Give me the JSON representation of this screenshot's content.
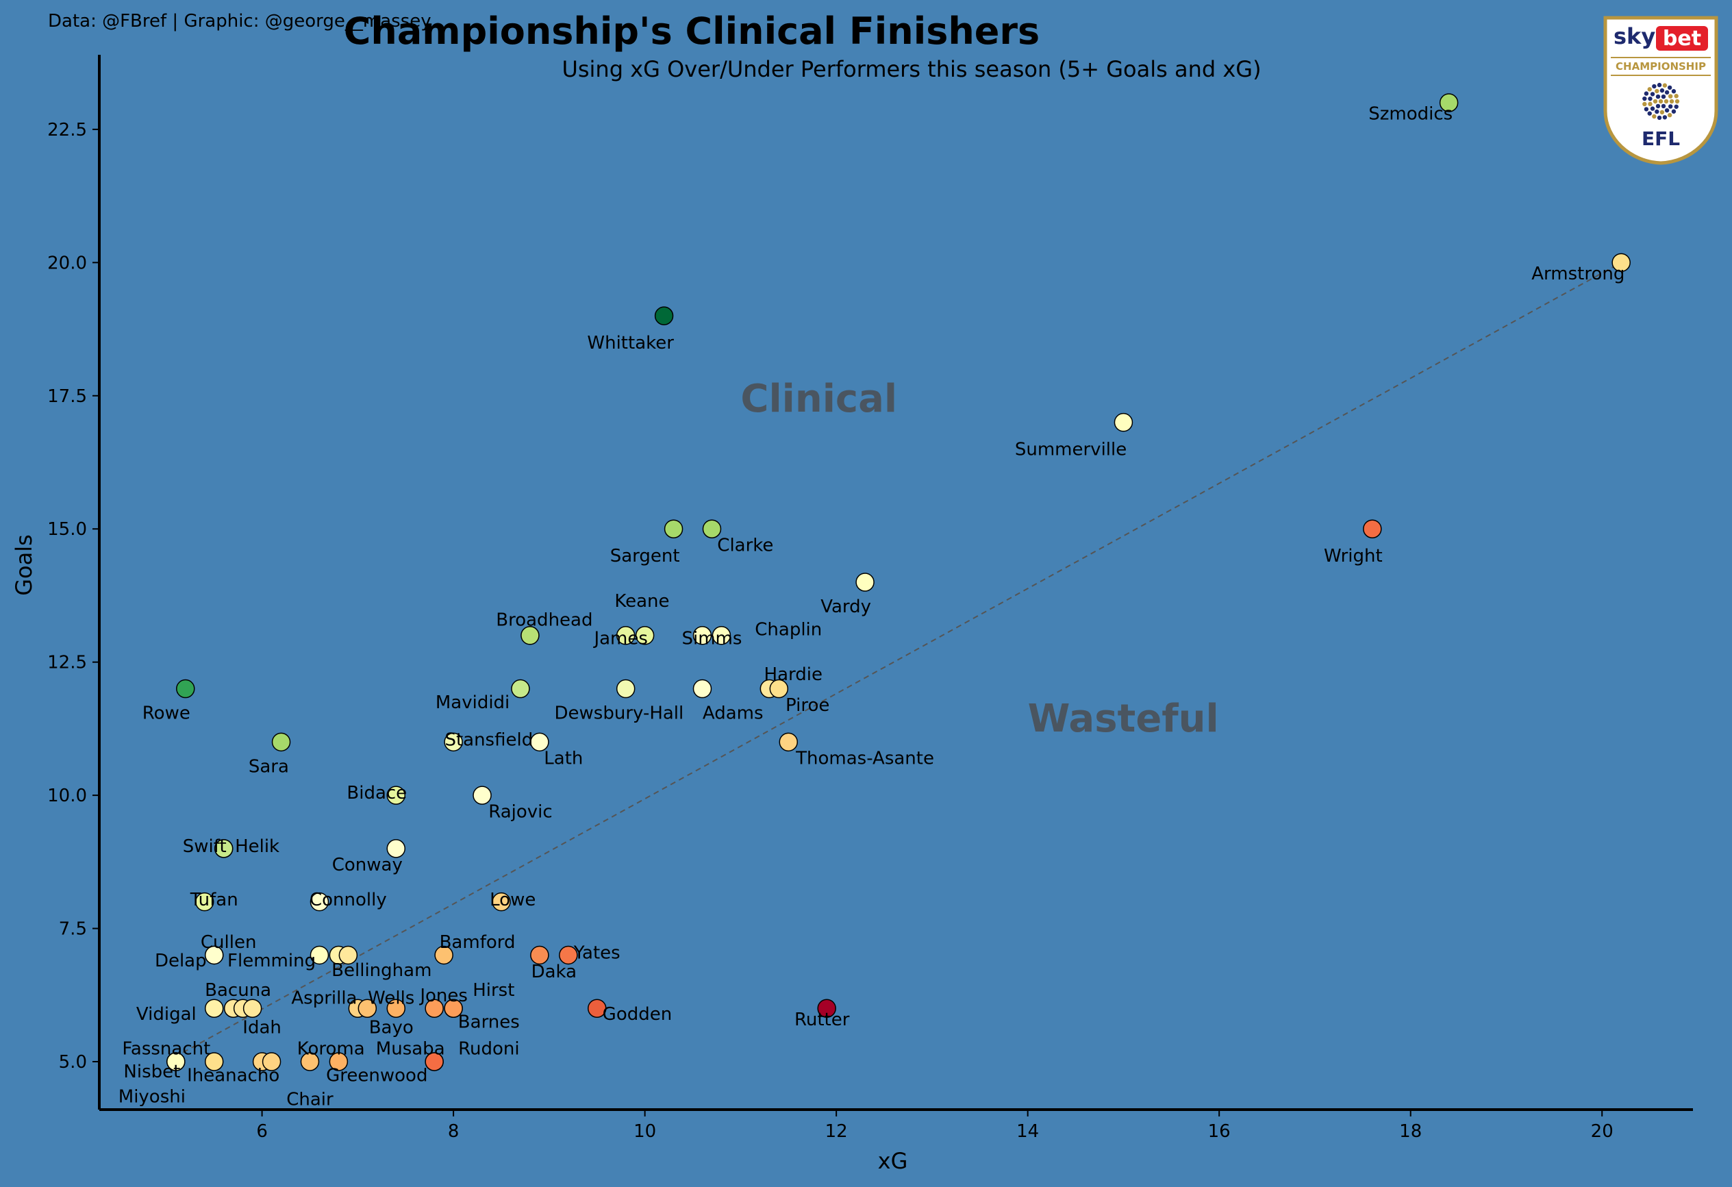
{
  "header": {
    "credit": "Data: @FBref | Graphic: @george__massey",
    "title": "Championship's Clinical Finishers",
    "subtitle": "Using xG Over/Under Performers this season (5+ Goals and xG)"
  },
  "logo": {
    "brand_sky": "sky",
    "brand_bet": "bet",
    "competition": "CHAMPIONSHIP",
    "league": "EFL",
    "colors": {
      "navy": "#1e2a6e",
      "red": "#e4202a",
      "gold": "#b8963f"
    }
  },
  "chart_data": {
    "type": "scatter",
    "xlabel": "xG",
    "ylabel": "Goals",
    "xlim": [
      4.3,
      20.95
    ],
    "ylim": [
      4.1,
      23.9
    ],
    "xticks": [
      6,
      8,
      10,
      12,
      14,
      16,
      18,
      20
    ],
    "yticks": [
      5.0,
      7.5,
      10.0,
      12.5,
      15.0,
      17.5,
      20.0,
      22.5
    ],
    "grid": false,
    "reference_line": {
      "from": [
        5,
        5
      ],
      "to": [
        20.2,
        20
      ]
    },
    "annotations": [
      {
        "text": "Clinical",
        "x": 11.0,
        "y": 17.2
      },
      {
        "text": "Wasteful",
        "x": 14.0,
        "y": 11.2
      }
    ],
    "points": [
      {
        "name": "Szmodics",
        "x": 18.4,
        "y": 23,
        "color": "#a6d96a"
      },
      {
        "name": "Armstrong",
        "x": 20.2,
        "y": 20,
        "color": "#fee08b"
      },
      {
        "name": "Whittaker",
        "x": 10.2,
        "y": 19,
        "color": "#006837"
      },
      {
        "name": "Summerville",
        "x": 15.0,
        "y": 17,
        "color": "#ffffbf"
      },
      {
        "name": "Sargent",
        "x": 10.3,
        "y": 15,
        "color": "#a6d96a"
      },
      {
        "name": "Clarke",
        "x": 10.7,
        "y": 15,
        "color": "#a6d96a"
      },
      {
        "name": "Wright",
        "x": 17.6,
        "y": 15,
        "color": "#f46d43"
      },
      {
        "name": "Vardy",
        "x": 12.3,
        "y": 14,
        "color": "#ffffbf"
      },
      {
        "name": "Broadhead",
        "x": 8.8,
        "y": 13,
        "color": "#b7e075"
      },
      {
        "name": "James",
        "x": 9.8,
        "y": 13,
        "color": "#e6f59d"
      },
      {
        "name": "Keane",
        "x": 10.0,
        "y": 13,
        "color": "#e6f59d"
      },
      {
        "name": "Simms",
        "x": 10.6,
        "y": 13,
        "color": "#ffffbf"
      },
      {
        "name": "Chaplin",
        "x": 10.8,
        "y": 13,
        "color": "#ffffbf"
      },
      {
        "name": "Rowe",
        "x": 5.2,
        "y": 12,
        "color": "#31a354"
      },
      {
        "name": "Mavididi",
        "x": 8.7,
        "y": 12,
        "color": "#c7e98a"
      },
      {
        "name": "Dewsbury-Hall",
        "x": 9.8,
        "y": 12,
        "color": "#f1f9b2"
      },
      {
        "name": "Adams",
        "x": 10.6,
        "y": 12,
        "color": "#ffffcc"
      },
      {
        "name": "Hardie",
        "x": 11.3,
        "y": 12,
        "color": "#fee89b"
      },
      {
        "name": "Piroe",
        "x": 11.4,
        "y": 12,
        "color": "#fee08b"
      },
      {
        "name": "Sara",
        "x": 6.2,
        "y": 11,
        "color": "#a6d96a"
      },
      {
        "name": "Stansfield",
        "x": 8.0,
        "y": 11,
        "color": "#f1f9b2"
      },
      {
        "name": "Lath",
        "x": 8.9,
        "y": 11,
        "color": "#ffffcc"
      },
      {
        "name": "Thomas-Asante",
        "x": 11.5,
        "y": 11,
        "color": "#fed382"
      },
      {
        "name": "Bidace",
        "x": 7.4,
        "y": 10,
        "color": "#e6f59d"
      },
      {
        "name": "Rajovic",
        "x": 8.3,
        "y": 10,
        "color": "#ffffcc"
      },
      {
        "name": "Swift",
        "x": 5.6,
        "y": 9,
        "color": "#b7e075"
      },
      {
        "name": "Helik",
        "x": 5.6,
        "y": 9,
        "color": "#c7e98a"
      },
      {
        "name": "Conway",
        "x": 7.4,
        "y": 9,
        "color": "#ffffcc"
      },
      {
        "name": "Tufan",
        "x": 5.4,
        "y": 8,
        "color": "#e6f59d"
      },
      {
        "name": "Connolly",
        "x": 6.6,
        "y": 8,
        "color": "#ffffcc"
      },
      {
        "name": "Lowe",
        "x": 8.5,
        "y": 8,
        "color": "#fed382"
      },
      {
        "name": "Cullen",
        "x": 5.5,
        "y": 7,
        "color": "#ffffcc"
      },
      {
        "name": "Delap",
        "x": 5.5,
        "y": 7,
        "color": "#ffffcc"
      },
      {
        "name": "Flemming",
        "x": 6.6,
        "y": 7,
        "color": "#ffffbf"
      },
      {
        "name": "Bellingham",
        "x": 6.8,
        "y": 7,
        "color": "#fff2a8"
      },
      {
        "name": "Bellingham",
        "x": 6.9,
        "y": 7,
        "color": "#fee89b"
      },
      {
        "name": "Bamford",
        "x": 7.9,
        "y": 7,
        "color": "#fdc170"
      },
      {
        "name": "Daka",
        "x": 8.9,
        "y": 7,
        "color": "#f88d52"
      },
      {
        "name": "Yates",
        "x": 9.2,
        "y": 7,
        "color": "#f57748"
      },
      {
        "name": "Vidigal",
        "x": 5.5,
        "y": 6,
        "color": "#fff2a8"
      },
      {
        "name": "Bacuna",
        "x": 5.7,
        "y": 6,
        "color": "#fee89b"
      },
      {
        "name": "Idah",
        "x": 5.8,
        "y": 6,
        "color": "#fee89b"
      },
      {
        "name": "Bacuna",
        "x": 5.9,
        "y": 6,
        "color": "#fee89b"
      },
      {
        "name": "Asprilla",
        "x": 7.0,
        "y": 6,
        "color": "#fed382"
      },
      {
        "name": "Bayo",
        "x": 7.1,
        "y": 6,
        "color": "#fdc170"
      },
      {
        "name": "Wells",
        "x": 7.4,
        "y": 6,
        "color": "#fdb163"
      },
      {
        "name": "Jones",
        "x": 7.8,
        "y": 6,
        "color": "#fc9d59"
      },
      {
        "name": "Hirst",
        "x": 8.0,
        "y": 6,
        "color": "#fc9d59"
      },
      {
        "name": "Barnes",
        "x": 8.0,
        "y": 6,
        "color": "#fc9d59"
      },
      {
        "name": "Godden",
        "x": 9.5,
        "y": 6,
        "color": "#ec5f3c"
      },
      {
        "name": "Rutter",
        "x": 11.9,
        "y": 6,
        "color": "#a50026"
      },
      {
        "name": "Nisbet",
        "x": 5.1,
        "y": 5,
        "color": "#ffffbf"
      },
      {
        "name": "Fassnacht",
        "x": 5.1,
        "y": 5,
        "color": "#ffffbf"
      },
      {
        "name": "Miyoshi",
        "x": 5.1,
        "y": 5,
        "color": "#ffffbf"
      },
      {
        "name": "Iheanacho",
        "x": 5.5,
        "y": 5,
        "color": "#fee08b"
      },
      {
        "name": "Chair",
        "x": 6.0,
        "y": 5,
        "color": "#fed382"
      },
      {
        "name": "Chair",
        "x": 6.1,
        "y": 5,
        "color": "#fed382"
      },
      {
        "name": "Koroma",
        "x": 6.5,
        "y": 5,
        "color": "#fdc170"
      },
      {
        "name": "Greenwood",
        "x": 6.8,
        "y": 5,
        "color": "#fdb163"
      },
      {
        "name": "Musaba",
        "x": 7.8,
        "y": 5,
        "color": "#f46d43"
      },
      {
        "name": "Rudoni",
        "x": 7.8,
        "y": 5,
        "color": "#f46d43"
      }
    ],
    "labels": [
      {
        "text": "Szmodics",
        "x": 18.0,
        "y": 22.8,
        "anchor": "middle"
      },
      {
        "text": "Armstrong",
        "x": 19.75,
        "y": 19.8,
        "anchor": "middle"
      },
      {
        "text": "Whittaker",
        "x": 9.85,
        "y": 18.5,
        "anchor": "middle"
      },
      {
        "text": "Summerville",
        "x": 14.45,
        "y": 16.5,
        "anchor": "middle"
      },
      {
        "text": "Sargent",
        "x": 10.0,
        "y": 14.5,
        "anchor": "middle"
      },
      {
        "text": "Clarke",
        "x": 11.05,
        "y": 14.7,
        "anchor": "middle"
      },
      {
        "text": "Wright",
        "x": 17.4,
        "y": 14.5,
        "anchor": "middle"
      },
      {
        "text": "Vardy",
        "x": 12.1,
        "y": 13.55,
        "anchor": "middle"
      },
      {
        "text": "Broadhead",
        "x": 8.95,
        "y": 13.3,
        "anchor": "middle"
      },
      {
        "text": "Keane",
        "x": 9.97,
        "y": 13.65,
        "anchor": "middle"
      },
      {
        "text": "James",
        "x": 9.75,
        "y": 12.95,
        "anchor": "middle"
      },
      {
        "text": "Simms",
        "x": 10.7,
        "y": 12.95,
        "anchor": "middle"
      },
      {
        "text": "Chaplin",
        "x": 11.5,
        "y": 13.12,
        "anchor": "middle"
      },
      {
        "text": "Rowe",
        "x": 5.0,
        "y": 11.55,
        "anchor": "middle"
      },
      {
        "text": "Mavididi",
        "x": 8.2,
        "y": 11.75,
        "anchor": "middle"
      },
      {
        "text": "Dewsbury-Hall",
        "x": 9.73,
        "y": 11.55,
        "anchor": "middle"
      },
      {
        "text": "Adams",
        "x": 10.92,
        "y": 11.55,
        "anchor": "middle"
      },
      {
        "text": "Hardie",
        "x": 11.55,
        "y": 12.28,
        "anchor": "middle"
      },
      {
        "text": "Piroe",
        "x": 11.7,
        "y": 11.7,
        "anchor": "middle"
      },
      {
        "text": "Sara",
        "x": 6.07,
        "y": 10.55,
        "anchor": "middle"
      },
      {
        "text": "Stansfield",
        "x": 8.37,
        "y": 11.05,
        "anchor": "middle"
      },
      {
        "text": "Lath",
        "x": 9.15,
        "y": 10.7,
        "anchor": "middle"
      },
      {
        "text": "Thomas-Asante",
        "x": 12.3,
        "y": 10.7,
        "anchor": "middle"
      },
      {
        "text": "Bidace",
        "x": 7.2,
        "y": 10.05,
        "anchor": "middle"
      },
      {
        "text": "Rajovic",
        "x": 8.7,
        "y": 9.7,
        "anchor": "middle"
      },
      {
        "text": "Swift",
        "x": 5.4,
        "y": 9.05,
        "anchor": "middle"
      },
      {
        "text": "Helik",
        "x": 5.95,
        "y": 9.05,
        "anchor": "middle"
      },
      {
        "text": "Conway",
        "x": 7.1,
        "y": 8.7,
        "anchor": "middle"
      },
      {
        "text": "Tufan",
        "x": 5.5,
        "y": 8.05,
        "anchor": "middle"
      },
      {
        "text": "Connolly",
        "x": 6.9,
        "y": 8.05,
        "anchor": "middle"
      },
      {
        "text": "Lowe",
        "x": 8.62,
        "y": 8.05,
        "anchor": "middle"
      },
      {
        "text": "Cullen",
        "x": 5.65,
        "y": 7.25,
        "anchor": "middle"
      },
      {
        "text": "Delap",
        "x": 5.15,
        "y": 6.9,
        "anchor": "middle"
      },
      {
        "text": "Flemming",
        "x": 6.1,
        "y": 6.9,
        "anchor": "middle"
      },
      {
        "text": "Bellingham",
        "x": 7.25,
        "y": 6.72,
        "anchor": "middle"
      },
      {
        "text": "Bamford",
        "x": 8.25,
        "y": 7.25,
        "anchor": "middle"
      },
      {
        "text": "Yates",
        "x": 9.5,
        "y": 7.05,
        "anchor": "middle"
      },
      {
        "text": "Daka",
        "x": 9.05,
        "y": 6.7,
        "anchor": "middle"
      },
      {
        "text": "Bacuna",
        "x": 5.75,
        "y": 6.35,
        "anchor": "middle"
      },
      {
        "text": "Vidigal",
        "x": 5.0,
        "y": 5.9,
        "anchor": "middle"
      },
      {
        "text": "Idah",
        "x": 6.0,
        "y": 5.65,
        "anchor": "middle"
      },
      {
        "text": "Asprilla",
        "x": 6.65,
        "y": 6.2,
        "anchor": "middle"
      },
      {
        "text": "Wells",
        "x": 7.35,
        "y": 6.2,
        "anchor": "middle"
      },
      {
        "text": "Jones",
        "x": 7.9,
        "y": 6.25,
        "anchor": "middle"
      },
      {
        "text": "Hirst",
        "x": 8.42,
        "y": 6.35,
        "anchor": "middle"
      },
      {
        "text": "Bayo",
        "x": 7.35,
        "y": 5.65,
        "anchor": "middle"
      },
      {
        "text": "Barnes",
        "x": 8.37,
        "y": 5.75,
        "anchor": "middle"
      },
      {
        "text": "Godden",
        "x": 9.92,
        "y": 5.9,
        "anchor": "middle"
      },
      {
        "text": "Rutter",
        "x": 11.85,
        "y": 5.8,
        "anchor": "middle"
      },
      {
        "text": "Fassnacht",
        "x": 5.0,
        "y": 5.25,
        "anchor": "middle"
      },
      {
        "text": "Nisbet",
        "x": 4.85,
        "y": 4.82,
        "anchor": "middle"
      },
      {
        "text": "Miyoshi",
        "x": 4.85,
        "y": 4.35,
        "anchor": "middle"
      },
      {
        "text": "Iheanacho",
        "x": 5.7,
        "y": 4.75,
        "anchor": "middle"
      },
      {
        "text": "Koroma",
        "x": 6.72,
        "y": 5.25,
        "anchor": "middle"
      },
      {
        "text": "Musaba",
        "x": 7.55,
        "y": 5.25,
        "anchor": "middle"
      },
      {
        "text": "Rudoni",
        "x": 8.37,
        "y": 5.25,
        "anchor": "middle"
      },
      {
        "text": "Greenwood",
        "x": 7.2,
        "y": 4.75,
        "anchor": "middle"
      },
      {
        "text": "Chair",
        "x": 6.5,
        "y": 4.3,
        "anchor": "middle"
      }
    ]
  }
}
